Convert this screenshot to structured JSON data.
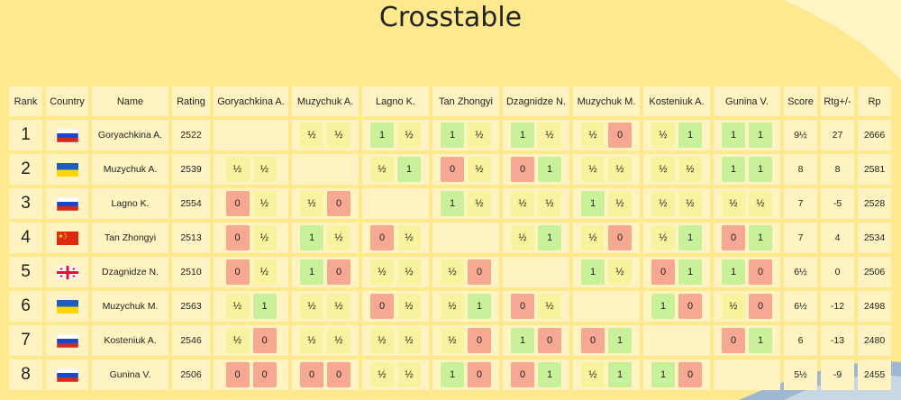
{
  "title": "Crosstable",
  "headers": {
    "rank": "Rank",
    "country": "Country",
    "name": "Name",
    "rating": "Rating",
    "opponents": [
      "Goryachkina A.",
      "Muzychuk A.",
      "Lagno K.",
      "Tan Zhongyi",
      "Dzagnidze N.",
      "Muzychuk M.",
      "Kosteniuk A.",
      "Gunina V."
    ],
    "score": "Score",
    "rtg_change": "Rtg+/-",
    "rp": "Rp"
  },
  "colors": {
    "win": "#c9f199",
    "draw": "#f8f39e",
    "loss": "#f7a893"
  },
  "players": [
    {
      "rank": "1",
      "country": "russia-flag-icon",
      "name": "Goryachkina A.",
      "rating": "2522",
      "score": "9½",
      "rtg_change": "27",
      "rp": "2666",
      "results": [
        null,
        [
          "½",
          "½"
        ],
        [
          "1",
          "½"
        ],
        [
          "1",
          "½"
        ],
        [
          "1",
          "½"
        ],
        [
          "½",
          "0"
        ],
        [
          "½",
          "1"
        ],
        [
          "1",
          "1"
        ]
      ]
    },
    {
      "rank": "2",
      "country": "ukraine-flag-icon",
      "name": "Muzychuk A.",
      "rating": "2539",
      "score": "8",
      "rtg_change": "8",
      "rp": "2581",
      "results": [
        [
          "½",
          "½"
        ],
        null,
        [
          "½",
          "1"
        ],
        [
          "0",
          "½"
        ],
        [
          "0",
          "1"
        ],
        [
          "½",
          "½"
        ],
        [
          "½",
          "½"
        ],
        [
          "1",
          "1"
        ]
      ]
    },
    {
      "rank": "3",
      "country": "russia-flag-icon",
      "name": "Lagno K.",
      "rating": "2554",
      "score": "7",
      "rtg_change": "-5",
      "rp": "2528",
      "results": [
        [
          "0",
          "½"
        ],
        [
          "½",
          "0"
        ],
        null,
        [
          "1",
          "½"
        ],
        [
          "½",
          "½"
        ],
        [
          "1",
          "½"
        ],
        [
          "½",
          "½"
        ],
        [
          "½",
          "½"
        ]
      ]
    },
    {
      "rank": "4",
      "country": "china-flag-icon",
      "name": "Tan Zhongyi",
      "rating": "2513",
      "score": "7",
      "rtg_change": "4",
      "rp": "2534",
      "results": [
        [
          "0",
          "½"
        ],
        [
          "1",
          "½"
        ],
        [
          "0",
          "½"
        ],
        null,
        [
          "½",
          "1"
        ],
        [
          "½",
          "0"
        ],
        [
          "½",
          "1"
        ],
        [
          "0",
          "1"
        ]
      ]
    },
    {
      "rank": "5",
      "country": "georgia-flag-icon",
      "name": "Dzagnidze N.",
      "rating": "2510",
      "score": "6½",
      "rtg_change": "0",
      "rp": "2506",
      "results": [
        [
          "0",
          "½"
        ],
        [
          "1",
          "0"
        ],
        [
          "½",
          "½"
        ],
        [
          "½",
          "0"
        ],
        null,
        [
          "1",
          "½"
        ],
        [
          "0",
          "1"
        ],
        [
          "1",
          "0"
        ]
      ]
    },
    {
      "rank": "6",
      "country": "ukraine-flag-icon",
      "name": "Muzychuk M.",
      "rating": "2563",
      "score": "6½",
      "rtg_change": "-12",
      "rp": "2498",
      "results": [
        [
          "½",
          "1"
        ],
        [
          "½",
          "½"
        ],
        [
          "0",
          "½"
        ],
        [
          "½",
          "1"
        ],
        [
          "0",
          "½"
        ],
        null,
        [
          "1",
          "0"
        ],
        [
          "½",
          "0"
        ]
      ]
    },
    {
      "rank": "7",
      "country": "russia-flag-icon",
      "name": "Kosteniuk A.",
      "rating": "2546",
      "score": "6",
      "rtg_change": "-13",
      "rp": "2480",
      "results": [
        [
          "½",
          "0"
        ],
        [
          "½",
          "½"
        ],
        [
          "½",
          "½"
        ],
        [
          "½",
          "0"
        ],
        [
          "1",
          "0"
        ],
        [
          "0",
          "1"
        ],
        null,
        [
          "0",
          "1"
        ]
      ]
    },
    {
      "rank": "8",
      "country": "russia-flag-icon",
      "name": "Gunina V.",
      "rating": "2506",
      "score": "5½",
      "rtg_change": "-9",
      "rp": "2455",
      "results": [
        [
          "0",
          "0"
        ],
        [
          "0",
          "0"
        ],
        [
          "½",
          "½"
        ],
        [
          "1",
          "0"
        ],
        [
          "0",
          "1"
        ],
        [
          "½",
          "1"
        ],
        [
          "1",
          "0"
        ],
        null
      ]
    }
  ]
}
